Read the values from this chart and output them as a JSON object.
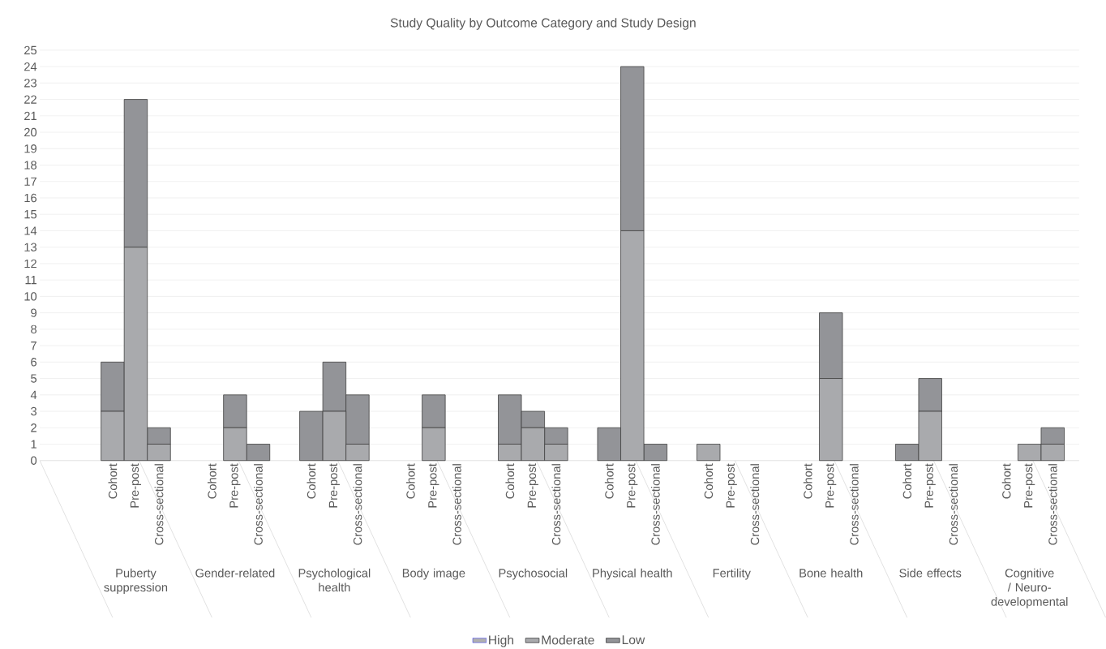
{
  "chart_data": {
    "type": "bar",
    "title": "Study Quality by Outcome Category and Study Design",
    "categories": [
      "Cohort",
      "Pre-post",
      "Cross-sectional",
      "Cohort",
      "Pre-post",
      "Cross-sectional",
      "Cohort",
      "Pre-post",
      "Cross-sectional",
      "Cohort",
      "Pre-post",
      "Cross-sectional",
      "Cohort",
      "Pre-post",
      "Cross-sectional",
      "Cohort",
      "Pre-post",
      "Cross-sectional",
      "Cohort",
      "Pre-post",
      "Cross-sectional",
      "Cohort",
      "Pre-post",
      "Cross-sectional",
      "Cohort",
      "Pre-post",
      "Cross-sectional",
      "Cohort",
      "Pre-post",
      "Cross-sectional"
    ],
    "annotations": [
      "Puberty suppression",
      "Gender-related",
      "Psychological health",
      "Body image",
      "Psychosocial",
      "Physical health",
      "Fertility",
      "Bone health",
      "Side effects",
      "Cognitive / Neuro-developmental"
    ],
    "stacked": true,
    "series": [
      {
        "name": "High",
        "color": "#b0b0b0",
        "values": [
          0,
          0,
          0,
          0,
          0,
          0,
          0,
          0,
          0,
          0,
          0,
          0,
          0,
          0,
          0,
          0,
          0,
          0,
          0,
          0,
          0,
          0,
          0,
          0,
          0,
          0,
          0,
          0,
          0,
          0
        ]
      },
      {
        "name": "Moderate",
        "color": "#a9aaad",
        "values": [
          3,
          13,
          1,
          0,
          2,
          0,
          0,
          3,
          1,
          0,
          2,
          0,
          1,
          2,
          1,
          0,
          14,
          0,
          1,
          0,
          0,
          0,
          5,
          0,
          0,
          3,
          0,
          0,
          1,
          1
        ]
      },
      {
        "name": "Low",
        "color": "#939498",
        "values": [
          3,
          9,
          1,
          0,
          2,
          1,
          3,
          3,
          3,
          0,
          2,
          0,
          3,
          1,
          1,
          2,
          10,
          1,
          0,
          0,
          0,
          0,
          4,
          0,
          1,
          2,
          0,
          0,
          0,
          1
        ]
      }
    ],
    "ylim": [
      0,
      25
    ],
    "yticks": [
      0,
      1,
      2,
      3,
      4,
      5,
      6,
      7,
      8,
      9,
      10,
      11,
      12,
      13,
      14,
      15,
      16,
      17,
      18,
      19,
      20,
      21,
      22,
      23,
      24,
      25
    ],
    "grid": "y",
    "legend": "bottom"
  }
}
